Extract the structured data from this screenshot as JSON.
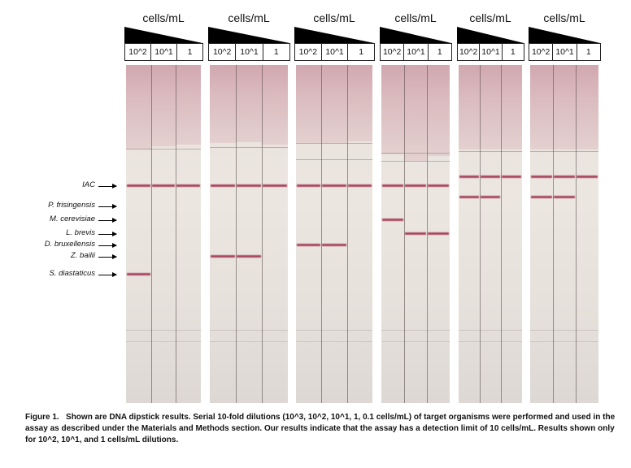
{
  "figure": {
    "panels": [
      {
        "units": "cells/mL",
        "dilutions": [
          "10^2",
          "10^1",
          "1"
        ]
      },
      {
        "units": "cells/mL",
        "dilutions": [
          "10^2",
          "10^1",
          "1"
        ]
      },
      {
        "units": "cells/mL",
        "dilutions": [
          "10^2",
          "10^1",
          "1"
        ]
      },
      {
        "units": "cells/mL",
        "dilutions": [
          "10^2",
          "10^1",
          "1"
        ]
      },
      {
        "units": "cells/mL",
        "dilutions": [
          "10^2",
          "10^1",
          "1"
        ]
      },
      {
        "units": "cells/mL",
        "dilutions": [
          "10^2",
          "10^1",
          "1"
        ]
      }
    ],
    "band_labels": [
      "IAC",
      "P. frisingensis",
      "M. cerevisiae",
      "L. brevis",
      "D. bruxellensis",
      "Z. bailii",
      "S. diastaticus"
    ],
    "colors": {
      "band": "#9c2b4a",
      "strip": "#efe6e1",
      "wedge": "#000000"
    }
  },
  "caption": {
    "label": "Figure 1.",
    "text": "Shown are DNA dipstick results. Serial 10-fold dilutions (10^3, 10^2, 10^1, 1, 0.1 cells/mL) of target organisms were performed and used in the assay as described under the Materials and Methods section. Our results indicate that the assay has a detection limit of 10 cells/mL. Results shown only for 10^2, 10^1, and 1 cells/mL dilutions."
  }
}
